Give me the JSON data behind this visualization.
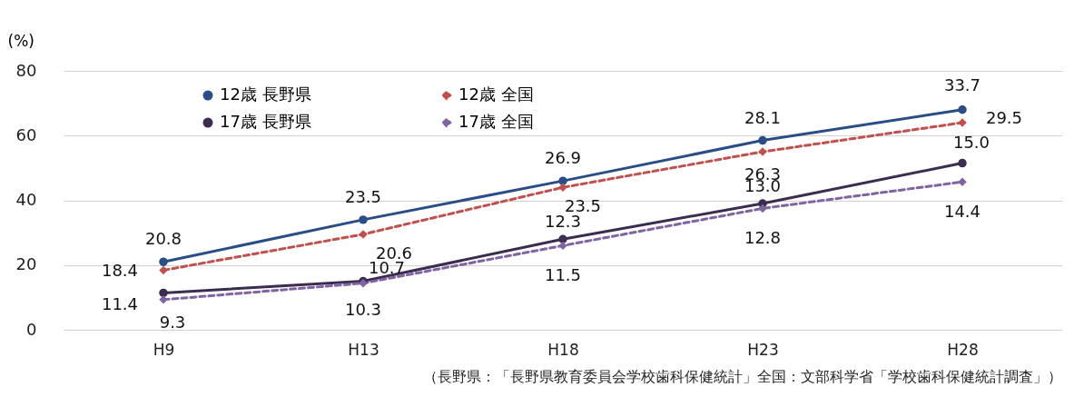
{
  "chart_data": {
    "type": "line",
    "ylabel": "(%)",
    "categories": [
      "H9",
      "H13",
      "H18",
      "H23",
      "H28"
    ],
    "series": [
      {
        "name": "12歳 長野県",
        "color": "#2a4d86",
        "marker": "circle",
        "line_style": "solid",
        "values": [
          21,
          34,
          46,
          58.5,
          68
        ]
      },
      {
        "name": "12歳 全国",
        "color": "#c0504d",
        "marker": "diamond",
        "line_style": "dashed",
        "values": [
          18.4,
          29.5,
          44,
          55,
          64
        ]
      },
      {
        "name": "17歳 長野県",
        "color": "#3c2c4f",
        "marker": "circle",
        "line_style": "solid",
        "values": [
          11.4,
          15,
          28,
          39,
          51.5
        ]
      },
      {
        "name": "17歳 全国",
        "color": "#8064a2",
        "marker": "diamond",
        "line_style": "dashed",
        "values": [
          9.3,
          14.4,
          26,
          37.5,
          45.7
        ]
      }
    ],
    "ylim": [
      0,
      80
    ],
    "yticks": [
      0,
      20,
      40,
      60,
      80
    ],
    "grid": "y",
    "legend": "top left",
    "annotations": [
      {
        "text": "20.8",
        "x": "H9",
        "y": 21
      },
      {
        "text": "23.5",
        "x": "H13",
        "y": 34
      },
      {
        "text": "26.9",
        "x": "H18",
        "y": 46
      },
      {
        "text": "28.1",
        "x": "H23",
        "y": 58.5
      },
      {
        "text": "33.7",
        "x": "H28",
        "y": 68
      },
      {
        "text": "18.4",
        "x": "H9",
        "y": 18.4
      },
      {
        "text": "20.6",
        "x": "H13",
        "y": 29.5
      },
      {
        "text": "23.5",
        "x": "H18",
        "y": 44
      },
      {
        "text": "26.3",
        "x": "H23",
        "y": 55
      },
      {
        "text": "29.5",
        "x": "H28",
        "y": 64
      },
      {
        "text": "11.4",
        "x": "H9",
        "y": 11.4
      },
      {
        "text": "10.7",
        "x": "H13",
        "y": 15
      },
      {
        "text": "12.3",
        "x": "H18",
        "y": 28
      },
      {
        "text": "13.0",
        "x": "H23",
        "y": 39
      },
      {
        "text": "15.0",
        "x": "H28",
        "y": 51.5
      },
      {
        "text": "9.3",
        "x": "H9",
        "y": 9.3
      },
      {
        "text": "10.3",
        "x": "H13",
        "y": 14.4
      },
      {
        "text": "11.5",
        "x": "H18",
        "y": 26
      },
      {
        "text": "12.8",
        "x": "H23",
        "y": 37.5
      },
      {
        "text": "14.4",
        "x": "H28",
        "y": 45.7
      },
      "（長野県：「長野県教育委員会学校歯科保健統計」全国：文部科学省「学校歯科保健統計調査」）"
    ]
  }
}
